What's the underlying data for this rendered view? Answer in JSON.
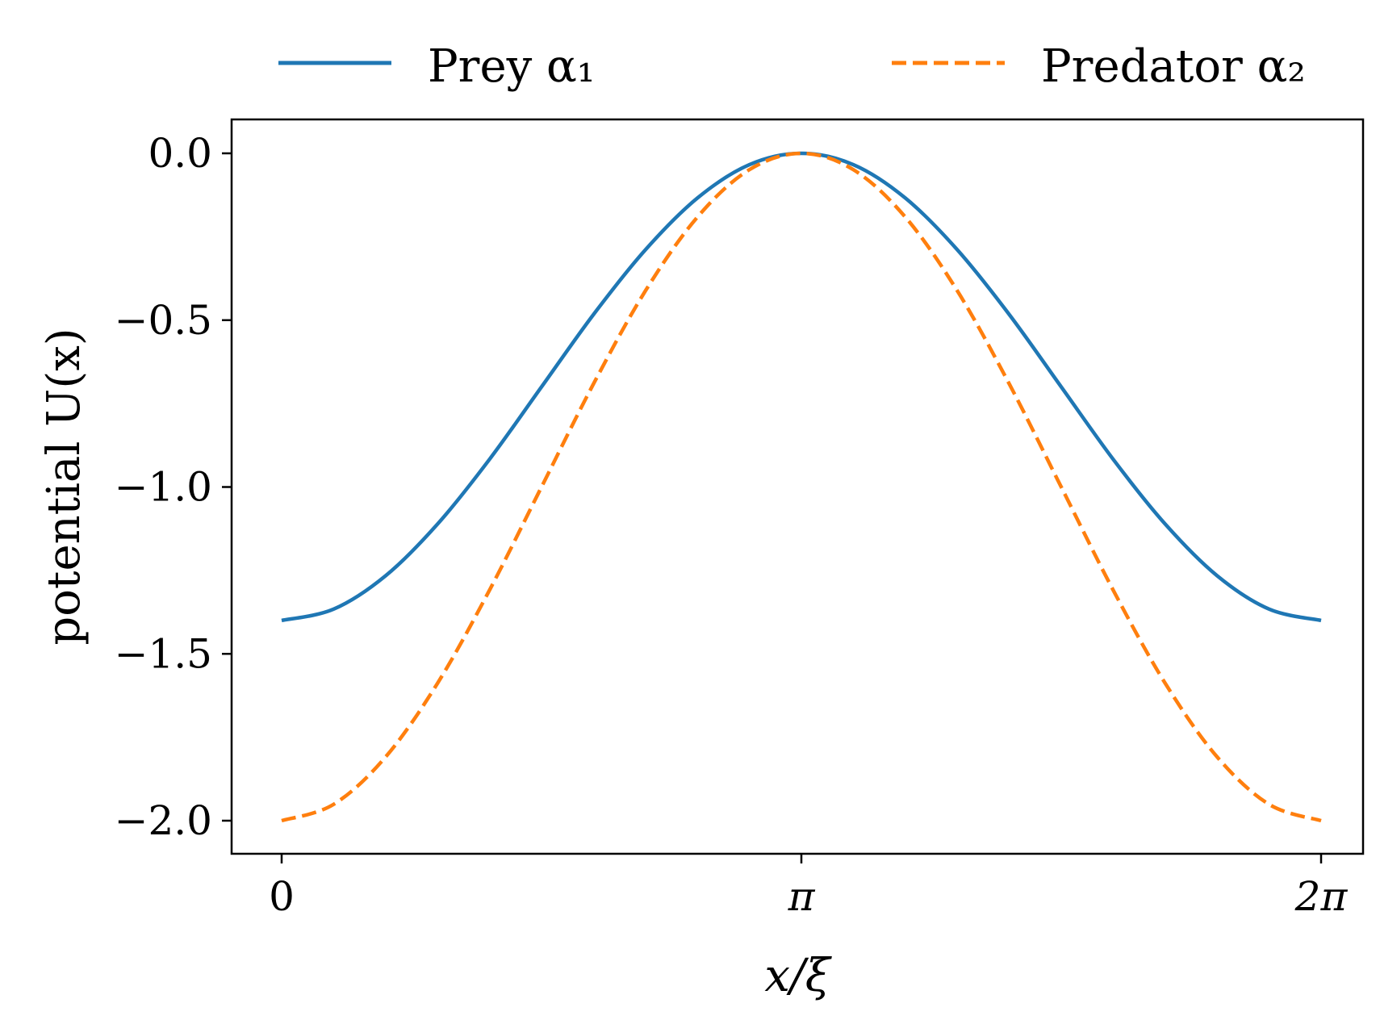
{
  "chart_data": {
    "type": "line",
    "xlabel": "x/ξ",
    "ylabel": "potential U(x)",
    "xlim": [
      -0.314,
      6.597
    ],
    "ylim": [
      -2.1,
      0.1
    ],
    "grid": false,
    "legend": {
      "placement": "top (above plot)",
      "ncol": 2
    },
    "x_ticks": [
      {
        "value": 0,
        "label": "0"
      },
      {
        "value": 3.14159,
        "label": "π"
      },
      {
        "value": 6.28318,
        "label": "2π"
      }
    ],
    "y_ticks": [
      {
        "value": 0.0,
        "label": "0.0"
      },
      {
        "value": -0.5,
        "label": "−0.5"
      },
      {
        "value": -1.0,
        "label": "−1.0"
      },
      {
        "value": -1.5,
        "label": "−1.5"
      },
      {
        "value": -2.0,
        "label": "−2.0"
      }
    ],
    "series": [
      {
        "name": "Prey α₁",
        "color": "#1f77b4",
        "style": "solid",
        "x": [
          0,
          0.3142,
          0.6283,
          0.9425,
          1.2566,
          1.5708,
          1.885,
          2.1991,
          2.5133,
          2.8274,
          3.1416,
          3.4558,
          3.7699,
          4.0841,
          4.3982,
          4.7124,
          5.0265,
          5.3407,
          5.6549,
          5.969,
          6.2832
        ],
        "y": [
          -1.4,
          -1.366,
          -1.266,
          -1.111,
          -0.917,
          -0.7,
          -0.483,
          -0.289,
          -0.134,
          -0.034,
          0.0,
          -0.034,
          -0.134,
          -0.289,
          -0.483,
          -0.7,
          -0.917,
          -1.111,
          -1.266,
          -1.366,
          -1.4
        ]
      },
      {
        "name": "Predator α₂",
        "color": "#ff7f0e",
        "style": "dashed",
        "x": [
          0,
          0.3142,
          0.6283,
          0.9425,
          1.2566,
          1.5708,
          1.885,
          2.1991,
          2.5133,
          2.8274,
          3.1416,
          3.4558,
          3.7699,
          4.0841,
          4.3982,
          4.7124,
          5.0265,
          5.3407,
          5.6549,
          5.969,
          6.2832
        ],
        "y": [
          -2.0,
          -1.951,
          -1.809,
          -1.588,
          -1.309,
          -1.0,
          -0.691,
          -0.412,
          -0.191,
          -0.049,
          0.0,
          -0.049,
          -0.191,
          -0.412,
          -0.691,
          -1.0,
          -1.309,
          -1.588,
          -1.809,
          -1.951,
          -2.0
        ]
      }
    ]
  }
}
